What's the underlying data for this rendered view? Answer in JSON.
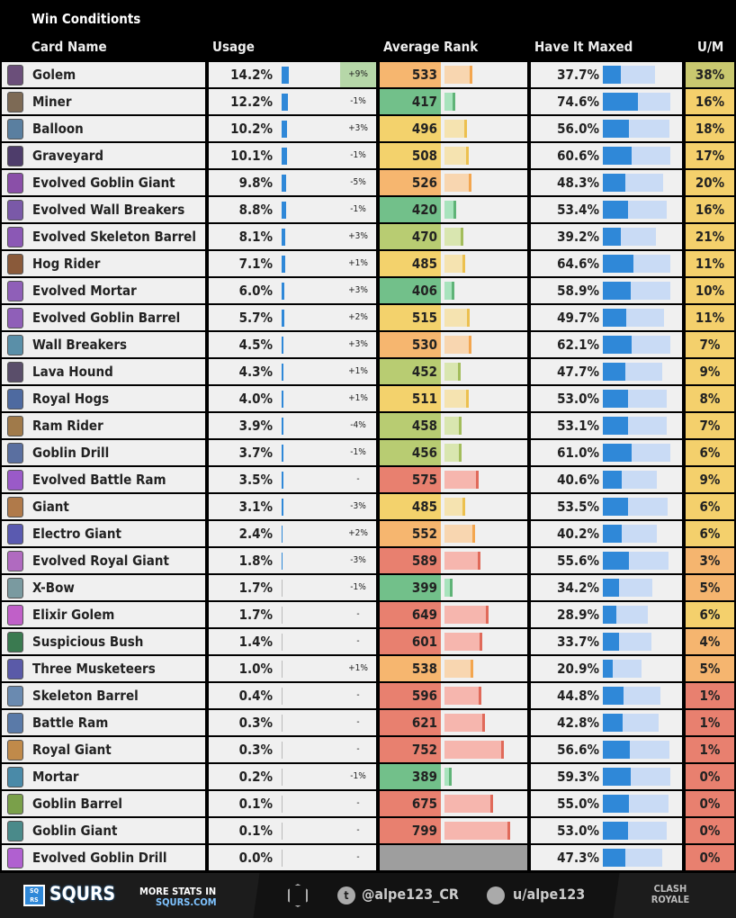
{
  "title": "Win Conditionts",
  "headers": {
    "name": "Card Name",
    "usage": "Usage",
    "rank": "Average Rank",
    "maxed": "Have It Maxed",
    "um": "U/M"
  },
  "rows": [
    {
      "name": "Golem",
      "usage": "14.2%",
      "change": "+9%",
      "rank": "533",
      "maxed": "37.7%",
      "um": "38%"
    },
    {
      "name": "Miner",
      "usage": "12.2%",
      "change": "-1%",
      "rank": "417",
      "maxed": "74.6%",
      "um": "16%"
    },
    {
      "name": "Balloon",
      "usage": "10.2%",
      "change": "+3%",
      "rank": "496",
      "maxed": "56.0%",
      "um": "18%"
    },
    {
      "name": "Graveyard",
      "usage": "10.1%",
      "change": "-1%",
      "rank": "508",
      "maxed": "60.6%",
      "um": "17%"
    },
    {
      "name": "Evolved Goblin Giant",
      "usage": "9.8%",
      "change": "-5%",
      "rank": "526",
      "maxed": "48.3%",
      "um": "20%"
    },
    {
      "name": "Evolved Wall Breakers",
      "usage": "8.8%",
      "change": "-1%",
      "rank": "420",
      "maxed": "53.4%",
      "um": "16%"
    },
    {
      "name": "Evolved Skeleton Barrel",
      "usage": "8.1%",
      "change": "+3%",
      "rank": "470",
      "maxed": "39.2%",
      "um": "21%"
    },
    {
      "name": "Hog Rider",
      "usage": "7.1%",
      "change": "+1%",
      "rank": "485",
      "maxed": "64.6%",
      "um": "11%"
    },
    {
      "name": "Evolved Mortar",
      "usage": "6.0%",
      "change": "+3%",
      "rank": "406",
      "maxed": "58.9%",
      "um": "10%"
    },
    {
      "name": "Evolved Goblin Barrel",
      "usage": "5.7%",
      "change": "+2%",
      "rank": "515",
      "maxed": "49.7%",
      "um": "11%"
    },
    {
      "name": "Wall Breakers",
      "usage": "4.5%",
      "change": "+3%",
      "rank": "530",
      "maxed": "62.1%",
      "um": "7%"
    },
    {
      "name": "Lava Hound",
      "usage": "4.3%",
      "change": "+1%",
      "rank": "452",
      "maxed": "47.7%",
      "um": "9%"
    },
    {
      "name": "Royal Hogs",
      "usage": "4.0%",
      "change": "+1%",
      "rank": "511",
      "maxed": "53.0%",
      "um": "8%"
    },
    {
      "name": "Ram Rider",
      "usage": "3.9%",
      "change": "-4%",
      "rank": "458",
      "maxed": "53.1%",
      "um": "7%"
    },
    {
      "name": "Goblin Drill",
      "usage": "3.7%",
      "change": "-1%",
      "rank": "456",
      "maxed": "61.0%",
      "um": "6%"
    },
    {
      "name": "Evolved Battle Ram",
      "usage": "3.5%",
      "change": "-",
      "rank": "575",
      "maxed": "40.6%",
      "um": "9%"
    },
    {
      "name": "Giant",
      "usage": "3.1%",
      "change": "-3%",
      "rank": "485",
      "maxed": "53.5%",
      "um": "6%"
    },
    {
      "name": "Electro Giant",
      "usage": "2.4%",
      "change": "+2%",
      "rank": "552",
      "maxed": "40.2%",
      "um": "6%"
    },
    {
      "name": "Evolved Royal Giant",
      "usage": "1.8%",
      "change": "-3%",
      "rank": "589",
      "maxed": "55.6%",
      "um": "3%"
    },
    {
      "name": "X-Bow",
      "usage": "1.7%",
      "change": "-1%",
      "rank": "399",
      "maxed": "34.2%",
      "um": "5%"
    },
    {
      "name": "Elixir Golem",
      "usage": "1.7%",
      "change": "-",
      "rank": "649",
      "maxed": "28.9%",
      "um": "6%"
    },
    {
      "name": "Suspicious Bush",
      "usage": "1.4%",
      "change": "-",
      "rank": "601",
      "maxed": "33.7%",
      "um": "4%"
    },
    {
      "name": "Three Musketeers",
      "usage": "1.0%",
      "change": "+1%",
      "rank": "538",
      "maxed": "20.9%",
      "um": "5%"
    },
    {
      "name": "Skeleton Barrel",
      "usage": "0.4%",
      "change": "-",
      "rank": "596",
      "maxed": "44.8%",
      "um": "1%"
    },
    {
      "name": "Battle Ram",
      "usage": "0.3%",
      "change": "-",
      "rank": "621",
      "maxed": "42.8%",
      "um": "1%"
    },
    {
      "name": "Royal Giant",
      "usage": "0.3%",
      "change": "-",
      "rank": "752",
      "maxed": "56.6%",
      "um": "1%"
    },
    {
      "name": "Mortar",
      "usage": "0.2%",
      "change": "-1%",
      "rank": "389",
      "maxed": "59.3%",
      "um": "0%"
    },
    {
      "name": "Goblin Barrel",
      "usage": "0.1%",
      "change": "-",
      "rank": "675",
      "maxed": "55.0%",
      "um": "0%"
    },
    {
      "name": "Goblin Giant",
      "usage": "0.1%",
      "change": "-",
      "rank": "799",
      "maxed": "53.0%",
      "um": "0%"
    },
    {
      "name": "Evolved Goblin Drill",
      "usage": "0.0%",
      "change": "-",
      "rank": "",
      "maxed": "47.3%",
      "um": "0%"
    }
  ],
  "footer": {
    "brand": "SQURS",
    "more": "MORE STATS IN",
    "site": "SQURS.COM",
    "twitter": "@alpe123_CR",
    "reddit": "u/alpe123",
    "game_logo": "CLASH ROYALE"
  },
  "colors": {
    "usage_bar": "#2f88d8",
    "maxed_dark": "#2f88d8",
    "maxed_light": "#c9dbf5",
    "change_highlight": "#b6d7a8"
  }
}
